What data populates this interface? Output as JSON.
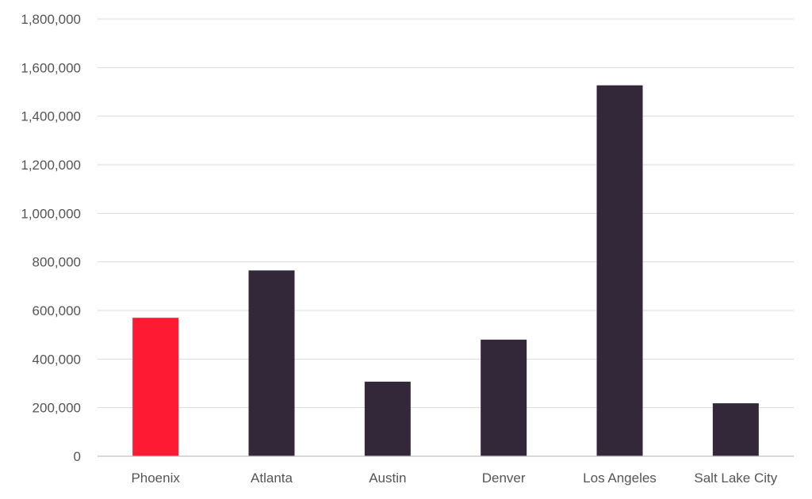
{
  "chart_data": {
    "type": "bar",
    "title": "",
    "xlabel": "",
    "ylabel": "",
    "categories": [
      "Phoenix",
      "Atlanta",
      "Austin",
      "Denver",
      "Los Angeles",
      "Salt Lake City"
    ],
    "values": [
      570000,
      765000,
      307000,
      480000,
      1527000,
      218000
    ],
    "bar_colors": [
      "#ff1a33",
      "#33283a",
      "#33283a",
      "#33283a",
      "#33283a",
      "#33283a"
    ],
    "ylim": [
      0,
      1800000
    ],
    "yticks": [
      0,
      200000,
      400000,
      600000,
      800000,
      1000000,
      1200000,
      1400000,
      1600000,
      1800000
    ],
    "ytick_labels": [
      "0",
      "200,000",
      "400,000",
      "600,000",
      "800,000",
      "1,000,000",
      "1,200,000",
      "1,400,000",
      "1,600,000",
      "1,800,000"
    ],
    "grid": true,
    "legend": "none"
  }
}
